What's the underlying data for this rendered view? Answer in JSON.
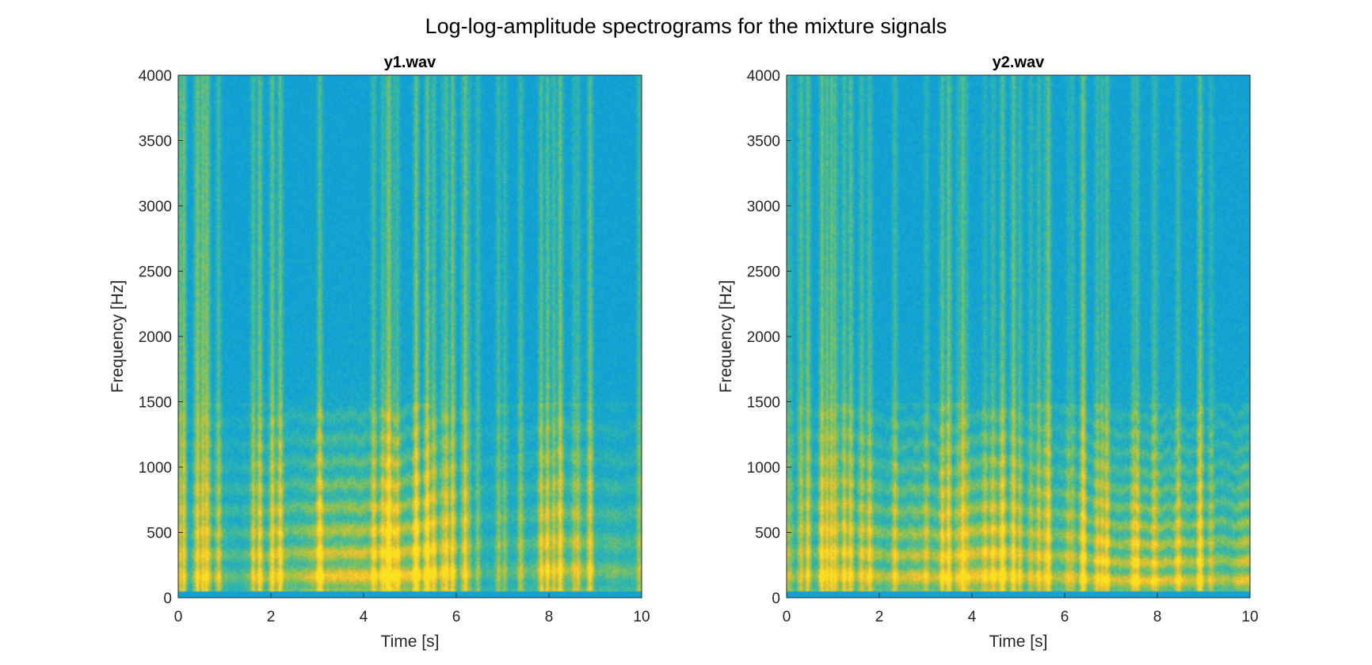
{
  "figure": {
    "title": "Log-log-amplitude spectrograms for the mixture signals"
  },
  "colors": {
    "background_low": "#0f9fd8",
    "mid": "#3fb7a0",
    "high": "#c9c43a",
    "peak": "#f5c72a"
  },
  "chart_data": [
    {
      "type": "heatmap",
      "title": "y1.wav",
      "xlabel": "Time [s]",
      "ylabel": "Frequency [Hz]",
      "xlim": [
        0,
        10
      ],
      "ylim": [
        0,
        4000
      ],
      "xticks": [
        0,
        2,
        4,
        6,
        8,
        10
      ],
      "yticks": [
        0,
        500,
        1000,
        1500,
        2000,
        2500,
        3000,
        3500,
        4000
      ],
      "colormap": "parula",
      "harmonic_band_hz": [
        100,
        600
      ],
      "energetic_region_hz": [
        0,
        1800
      ]
    },
    {
      "type": "heatmap",
      "title": "y2.wav",
      "xlabel": "Time [s]",
      "ylabel": "Frequency [Hz]",
      "xlim": [
        0,
        10
      ],
      "ylim": [
        0,
        4000
      ],
      "xticks": [
        0,
        2,
        4,
        6,
        8,
        10
      ],
      "yticks": [
        0,
        500,
        1000,
        1500,
        2000,
        2500,
        3000,
        3500,
        4000
      ],
      "colormap": "parula",
      "harmonic_band_hz": [
        100,
        600
      ],
      "energetic_region_hz": [
        0,
        1800
      ]
    }
  ]
}
